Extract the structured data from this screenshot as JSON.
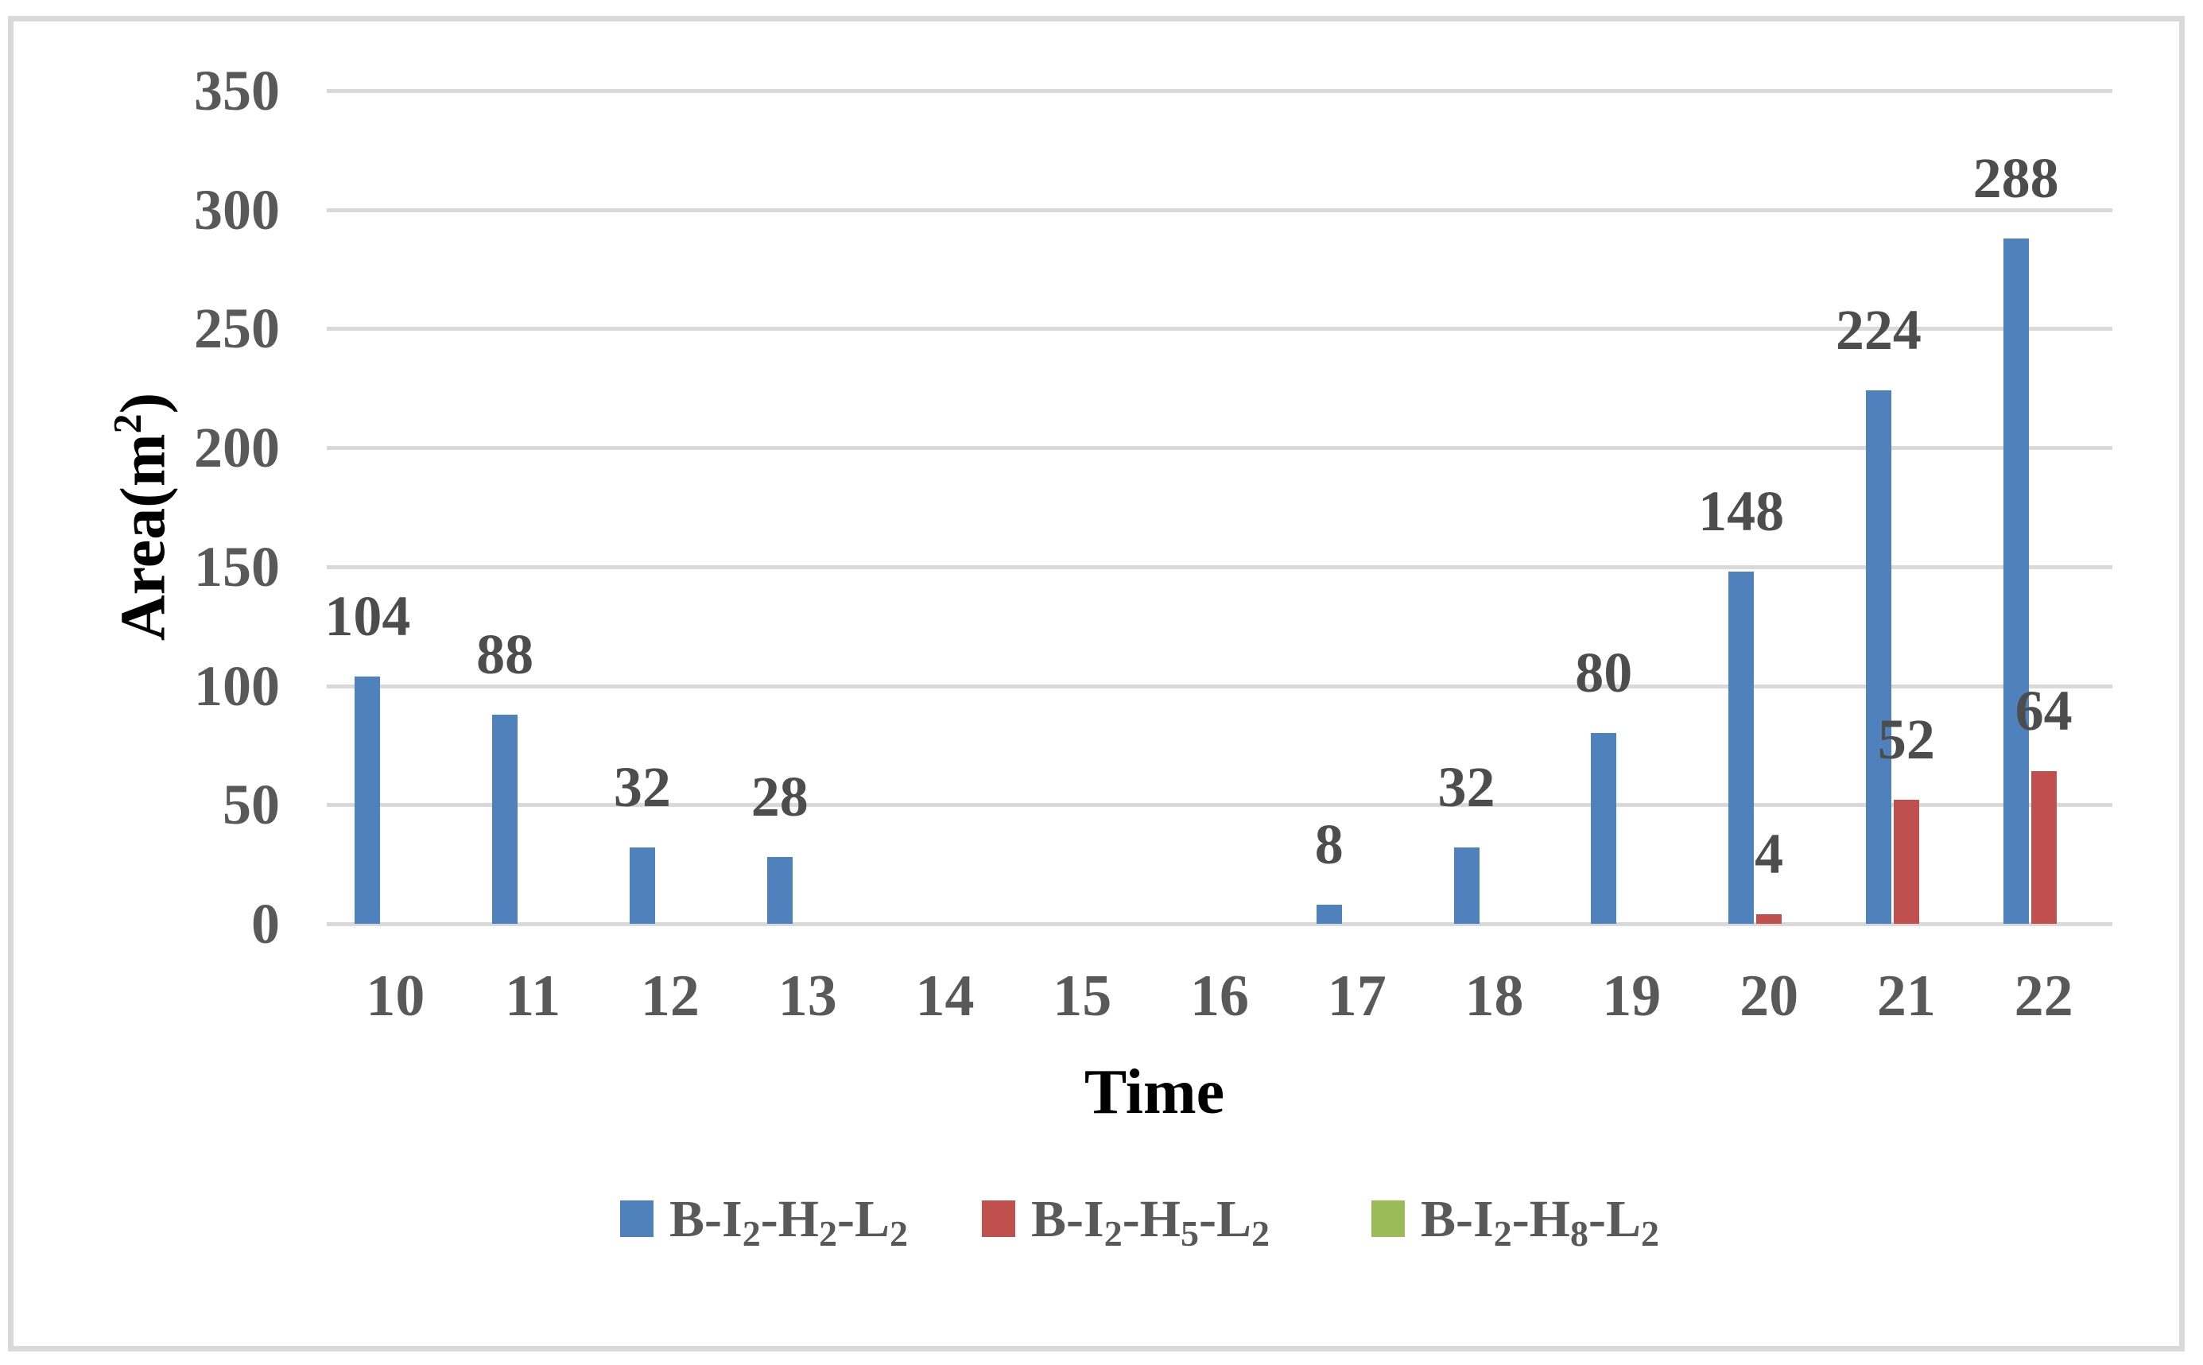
{
  "chart_data": {
    "type": "bar",
    "title": "",
    "xlabel": "Time",
    "ylabel": {
      "pre": "Area(m",
      "sup": "2",
      "post": ")"
    },
    "x": [
      10,
      11,
      12,
      13,
      14,
      15,
      16,
      17,
      18,
      19,
      20,
      21,
      22
    ],
    "yticks": [
      0,
      50,
      100,
      150,
      200,
      250,
      300,
      350
    ],
    "ylim": [
      0,
      350
    ],
    "ytick_step": 50,
    "grid": true,
    "legend_position": "bottom",
    "data_labels": "shown above bars for nonzero values only",
    "series": [
      {
        "name": "B-I2-H2-L2",
        "color": "#4F81BD",
        "values": [
          104,
          88,
          32,
          28,
          0,
          0,
          0,
          8,
          32,
          80,
          148,
          224,
          288
        ],
        "label_parts": [
          {
            "t": "B-I"
          },
          {
            "s": "2"
          },
          {
            "t": "-H"
          },
          {
            "s": "2"
          },
          {
            "t": "-L"
          },
          {
            "s": "2"
          }
        ]
      },
      {
        "name": "B-I2-H5-L2",
        "color": "#C0504D",
        "values": [
          0,
          0,
          0,
          0,
          0,
          0,
          0,
          0,
          0,
          0,
          4,
          52,
          64
        ],
        "label_parts": [
          {
            "t": "B-I"
          },
          {
            "s": "2"
          },
          {
            "t": "-H"
          },
          {
            "s": "5"
          },
          {
            "t": "-L"
          },
          {
            "s": "2"
          }
        ]
      },
      {
        "name": "B-I2-H8-L2",
        "color": "#9BBB59",
        "values": [
          0,
          0,
          0,
          0,
          0,
          0,
          0,
          0,
          0,
          0,
          0,
          0,
          0
        ],
        "label_parts": [
          {
            "t": "B-I"
          },
          {
            "s": "2"
          },
          {
            "t": "-H"
          },
          {
            "s": "8"
          },
          {
            "t": "-L"
          },
          {
            "s": "2"
          }
        ]
      }
    ]
  },
  "styles": {
    "background": "#FFFFFF",
    "border_color": "#D9D9D9",
    "grid_color": "#D9D9D9",
    "axis_text_color": "#595959",
    "data_label_color": "#4D4D4D"
  }
}
